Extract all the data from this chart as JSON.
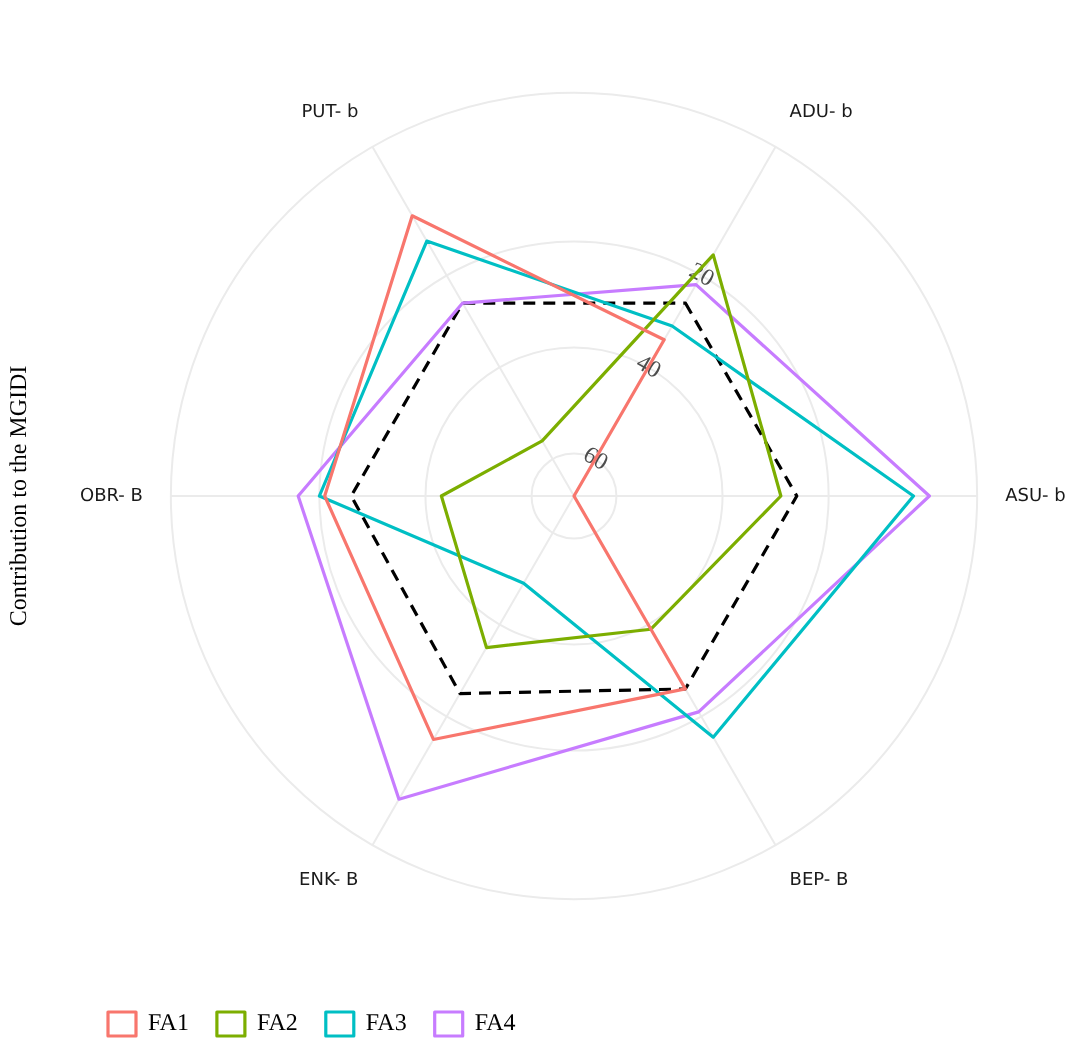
{
  "chart_data": {
    "type": "radar",
    "ylabel": "Contribution to the MGIDI",
    "categories": [
      "ADU- b",
      "ASU- b",
      "BEP- B",
      "ENK- B",
      "OBR- B",
      "PUT- b"
    ],
    "series": [
      {
        "name": "FA1",
        "color": "#f8766d",
        "values": [
          34,
          68,
          26,
          15,
          21,
          7
        ]
      },
      {
        "name": "FA2",
        "color": "#7cae00",
        "values": [
          15.5,
          29,
          39,
          35,
          43,
          56
        ]
      },
      {
        "name": "FA3",
        "color": "#00bfc4",
        "values": [
          31,
          4,
          15.5,
          49,
          20,
          12.5
        ]
      },
      {
        "name": "FA4",
        "color": "#c77cff",
        "values": [
          22,
          1,
          21,
          2,
          16,
          26
        ]
      },
      {
        "color": "#000000",
        "line_style": "dashed",
        "values": [
          26,
          26,
          26,
          25,
          26,
          26
        ]
      }
    ],
    "ylim": [
      68,
      -8
    ],
    "yticks": [
      20,
      40,
      60
    ],
    "grid": true,
    "legend": "bottom left",
    "marker": "none"
  }
}
